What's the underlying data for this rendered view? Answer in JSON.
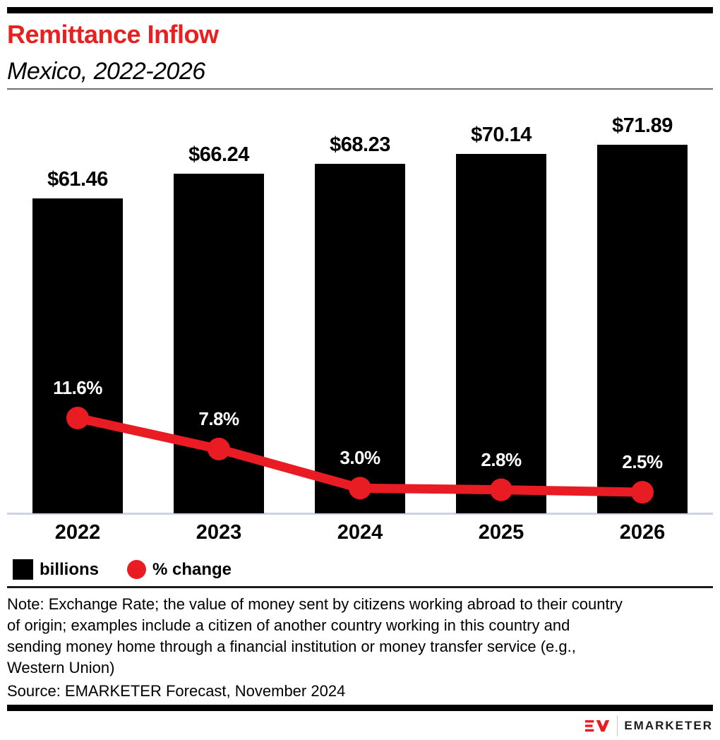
{
  "header": {
    "title": "Remittance Inflow",
    "subtitle": "Mexico, 2022-2026",
    "title_color": "#e8201f"
  },
  "chart_data": {
    "type": "bar",
    "title": "Remittance Inflow",
    "subtitle": "Mexico, 2022-2026",
    "categories": [
      "2022",
      "2023",
      "2024",
      "2025",
      "2026"
    ],
    "series": [
      {
        "name": "billions",
        "type": "bar",
        "values": [
          61.46,
          66.24,
          68.23,
          70.14,
          71.89
        ],
        "labels": [
          "$61.46",
          "$66.24",
          "$68.23",
          "$70.14",
          "$71.89"
        ],
        "color": "#000000",
        "unit": "USD billions"
      },
      {
        "name": "% change",
        "type": "line",
        "values": [
          11.6,
          7.8,
          3.0,
          2.8,
          2.5
        ],
        "labels": [
          "11.6%",
          "7.8%",
          "3.0%",
          "2.8%",
          "2.5%"
        ],
        "color": "#e81c22"
      }
    ],
    "legend": [
      {
        "label": "billions",
        "swatch": "square",
        "color": "#000000"
      },
      {
        "label": "% change",
        "swatch": "circle",
        "color": "#e81c22"
      }
    ],
    "axis": {
      "baseline_color": "#ccd3e6",
      "bar_axis_min": 0,
      "grid": false,
      "legend_position": "bottom-left"
    }
  },
  "footer": {
    "note_lines": [
      "Note: Exchange Rate; the value of money sent by citizens working abroad to their country",
      "of origin; examples include a citizen of another country working in this country and",
      "sending money home through a financial institution or money transfer service (e.g.,",
      "Western Union)"
    ],
    "source": "Source: EMARKETER Forecast, November 2024",
    "logo_text": "EMARKETER"
  }
}
